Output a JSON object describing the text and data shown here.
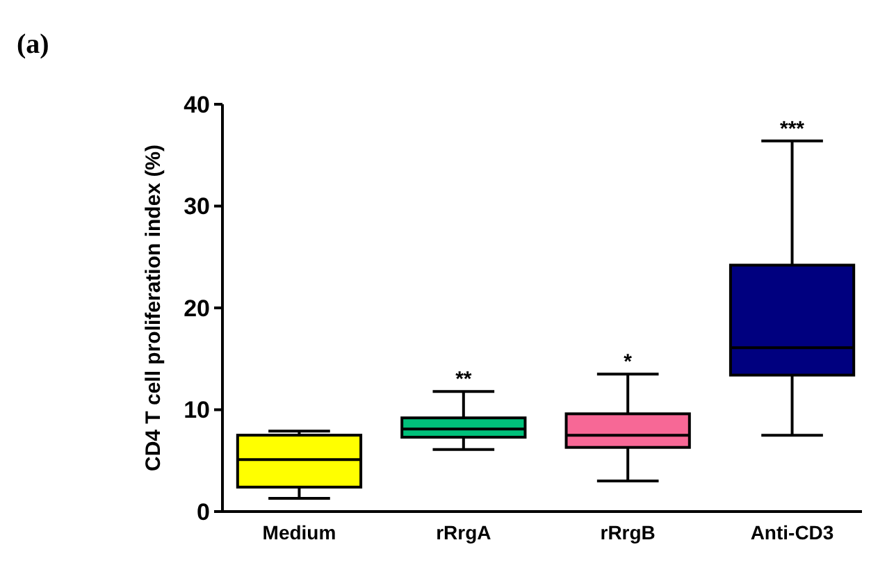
{
  "chart_data": {
    "type": "box",
    "ylabel": "CD4 T cell proliferation index (%)",
    "categories": [
      "Medium",
      "rRrgA",
      "rRrgB",
      "Anti-CD3"
    ],
    "colors": [
      "#ffff00",
      "#00c07a",
      "#f76896",
      "#00007f"
    ],
    "boxes": [
      {
        "low": 1.3,
        "q1": 2.4,
        "median": 5.1,
        "q3": 7.5,
        "high": 7.9
      },
      {
        "low": 6.1,
        "q1": 7.3,
        "median": 8.1,
        "q3": 9.2,
        "high": 11.8
      },
      {
        "low": 3.0,
        "q1": 6.3,
        "median": 7.5,
        "q3": 9.6,
        "high": 13.5
      },
      {
        "low": 7.5,
        "q1": 13.4,
        "median": 16.1,
        "q3": 24.2,
        "high": 36.4
      }
    ],
    "ylim": [
      0,
      40
    ],
    "yticks": [
      0,
      10,
      20,
      30,
      40
    ],
    "annotations": [
      "(a)",
      {
        "text": "**",
        "x": "rRrgA",
        "y": 11.8
      },
      {
        "text": "*",
        "x": "rRrgB",
        "y": 13.5
      },
      {
        "text": "***",
        "x": "Anti-CD3",
        "y": 36.4
      }
    ]
  }
}
